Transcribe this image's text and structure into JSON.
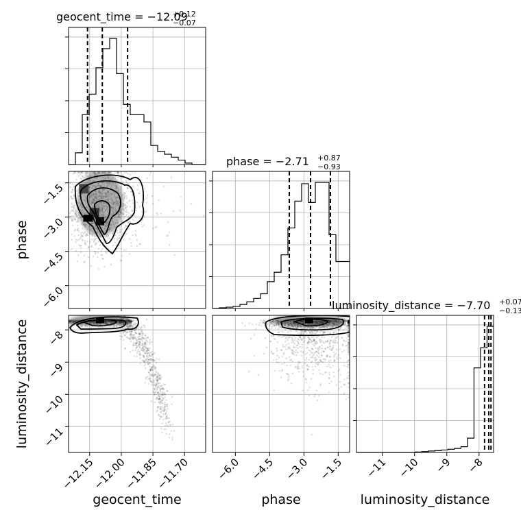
{
  "chart_data": {
    "type": "corner",
    "parameters": [
      {
        "name": "geocent_time",
        "label": "geocent_time",
        "title": "geocent_time = −12.09",
        "title_plus": "+0.12",
        "title_minus": "−0.07",
        "range": [
          -12.25,
          -11.6
        ],
        "ticks": [
          -12.15,
          -12.0,
          -11.85,
          -11.7
        ],
        "tick_labels": [
          "−12.15",
          "−12.00",
          "−11.85",
          "−11.70"
        ],
        "quantiles": [
          -12.16,
          -12.09,
          -11.97
        ],
        "hist": [
          0,
          0.08,
          0.34,
          0.48,
          0.66,
          0.79,
          0.86,
          0.62,
          0.41,
          0.34,
          0.34,
          0.29,
          0.13,
          0.09,
          0.07,
          0.05,
          0.03,
          0.01,
          0,
          0
        ]
      },
      {
        "name": "phase",
        "label": "phase",
        "title": "phase = −2.71",
        "title_plus": "+0.87",
        "title_minus": "−0.93",
        "range": [
          -7.0,
          -1.0
        ],
        "ticks": [
          -6.0,
          -4.5,
          -3.0,
          -1.5
        ],
        "tick_labels": [
          "−6.0",
          "−4.5",
          "−3.0",
          "−1.5"
        ],
        "quantiles": [
          -3.64,
          -2.71,
          -1.84
        ],
        "hist": [
          0,
          0.005,
          0.01,
          0.015,
          0.03,
          0.05,
          0.075,
          0.11,
          0.2,
          0.27,
          0.4,
          0.6,
          0.8,
          0.93,
          0.79,
          0.94,
          0.94,
          0.55,
          0.35,
          0.35
        ]
      },
      {
        "name": "luminosity_distance",
        "label": "luminosity_distance",
        "title": "luminosity_distance = −7.70",
        "title_plus": "+0.07",
        "title_minus": "−0.13",
        "range": [
          -11.8,
          -7.55
        ],
        "ticks": [
          -11,
          -10,
          -9,
          -8
        ],
        "tick_labels": [
          "−11",
          "−10",
          "−9",
          "−8"
        ],
        "quantiles": [
          -7.83,
          -7.7,
          -7.63
        ],
        "hist": [
          0,
          0,
          0,
          0,
          0,
          0,
          0,
          0,
          0,
          0.003,
          0.006,
          0.01,
          0.013,
          0.017,
          0.022,
          0.028,
          0.04,
          0.1,
          0.59,
          0.73,
          0.88
        ]
      }
    ],
    "y_ticks": {
      "phase": {
        "values": [
          -1.5,
          -3.0,
          -4.5,
          -6.0
        ],
        "labels": [
          "−1.5",
          "−3.0",
          "−4.5",
          "−6.0"
        ],
        "range": [
          -7.0,
          -1.0
        ]
      },
      "luminosity_distance": {
        "values": [
          -8,
          -9,
          -10,
          -11
        ],
        "labels": [
          "−8",
          "−9",
          "−10",
          "−11"
        ],
        "range": [
          -11.8,
          -7.55
        ]
      }
    },
    "grid": true,
    "diag_y_ticks_unlabeled": true
  }
}
